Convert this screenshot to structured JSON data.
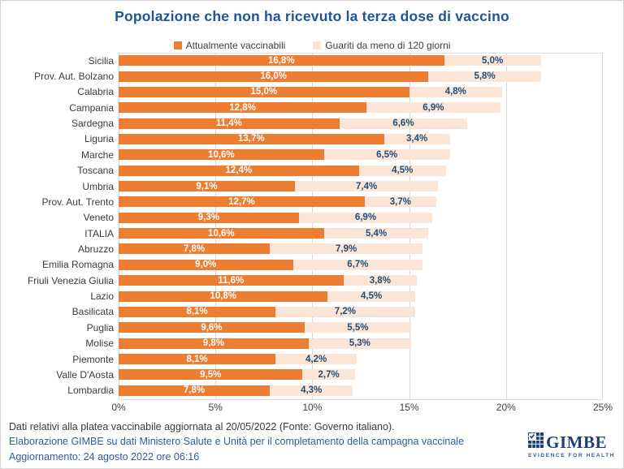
{
  "title": "Popolazione che non ha ricevuto la terza dose di vaccino",
  "chart_data": {
    "type": "bar",
    "orientation": "horizontal",
    "stacked": true,
    "title": "Popolazione che non ha ricevuto la terza dose di vaccino",
    "categories": [
      "Sicilia",
      "Prov. Aut. Bolzano",
      "Calabria",
      "Campania",
      "Sardegna",
      "Liguria",
      "Marche",
      "Toscana",
      "Umbria",
      "Prov. Aut. Trento",
      "Veneto",
      "ITALIA",
      "Abruzzo",
      "Emilia Romagna",
      "Friuli Venezia Giulia",
      "Lazio",
      "Basilicata",
      "Puglia",
      "Molise",
      "Piemonte",
      "Valle D'Aosta",
      "Lombardia"
    ],
    "series": [
      {
        "name": "Attualmente vaccinabili",
        "color": "#ED7D31",
        "label_color": "#FFFFFF",
        "values": [
          16.8,
          16.0,
          15.0,
          12.8,
          11.4,
          13.7,
          10.6,
          12.4,
          9.1,
          12.7,
          9.3,
          10.6,
          7.8,
          9.0,
          11.6,
          10.8,
          8.1,
          9.6,
          9.8,
          8.1,
          9.5,
          7.8
        ],
        "labels": [
          "16,8%",
          "16,0%",
          "15,0%",
          "12,8%",
          "11,4%",
          "13,7%",
          "10,6%",
          "12,4%",
          "9,1%",
          "12,7%",
          "9,3%",
          "10,6%",
          "7,8%",
          "9,0%",
          "11,6%",
          "10,8%",
          "8,1%",
          "9,6%",
          "9,8%",
          "8,1%",
          "9,5%",
          "7,8%"
        ]
      },
      {
        "name": "Guariti da meno di 120 giorni",
        "color": "#FBE5D6",
        "label_color": "#1F4E79",
        "values": [
          5.0,
          5.8,
          4.8,
          6.9,
          6.6,
          3.4,
          6.5,
          4.5,
          7.4,
          3.7,
          6.9,
          5.4,
          7.9,
          6.7,
          3.8,
          4.5,
          7.2,
          5.5,
          5.3,
          4.2,
          2.7,
          4.3
        ],
        "labels": [
          "5,0%",
          "5,8%",
          "4,8%",
          "6,9%",
          "6,6%",
          "3,4%",
          "6,5%",
          "4,5%",
          "7,4%",
          "3,7%",
          "6,9%",
          "5,4%",
          "7,9%",
          "6,7%",
          "3,8%",
          "4,5%",
          "7,2%",
          "5,5%",
          "5,3%",
          "4,2%",
          "2,7%",
          "4,3%"
        ]
      }
    ],
    "xlim": [
      0,
      25
    ],
    "x_ticks": [
      "0%",
      "5%",
      "10%",
      "15%",
      "20%",
      "25%"
    ],
    "grid": true,
    "legend_position": "top"
  },
  "footer": {
    "line1": "Dati relativi alla platea vaccinabile aggiornata al 20/05/2022 (Fonte: Governo italiano).",
    "line2": "Elaborazione GIMBE su dati Ministero Salute e Unità per il completamento della campagna vaccinale",
    "line3": "Aggiornamento: 24 agosto 2022 ore 06:16"
  },
  "logo": {
    "text": "GIMBE",
    "tagline": "EVIDENCE FOR HEALTH"
  },
  "colors": {
    "title": "#1F5496",
    "footer_link": "#2E5B9F",
    "gridline": "#D9D9D9",
    "logo_navy": "#1B3F76"
  }
}
